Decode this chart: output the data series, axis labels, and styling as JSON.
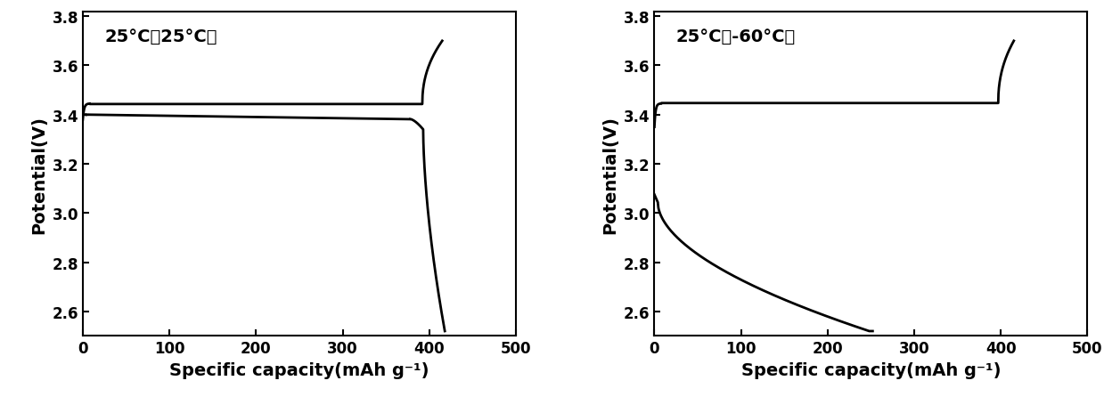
{
  "plot1": {
    "label": "25°C充25°C放",
    "xlabel": "Specific capacity(mAh g⁻¹)",
    "ylabel": "Potential(V)",
    "xlim": [
      0,
      500
    ],
    "ylim": [
      2.5,
      3.82
    ],
    "yticks": [
      2.6,
      2.8,
      3.0,
      3.2,
      3.4,
      3.6,
      3.8
    ],
    "xticks": [
      0,
      100,
      200,
      300,
      400,
      500
    ]
  },
  "plot2": {
    "label": "25°C充-60°C放",
    "xlabel": "Specific capacity(mAh g⁻¹)",
    "ylabel": "Potential(V)",
    "xlim": [
      0,
      500
    ],
    "ylim": [
      2.5,
      3.82
    ],
    "yticks": [
      2.6,
      2.8,
      3.0,
      3.2,
      3.4,
      3.6,
      3.8
    ],
    "xticks": [
      0,
      100,
      200,
      300,
      400,
      500
    ]
  },
  "line_color": "#000000",
  "line_width": 2.0,
  "bg_color": "#ffffff",
  "font_size_label": 14,
  "font_size_tick": 12,
  "font_size_annot": 14
}
